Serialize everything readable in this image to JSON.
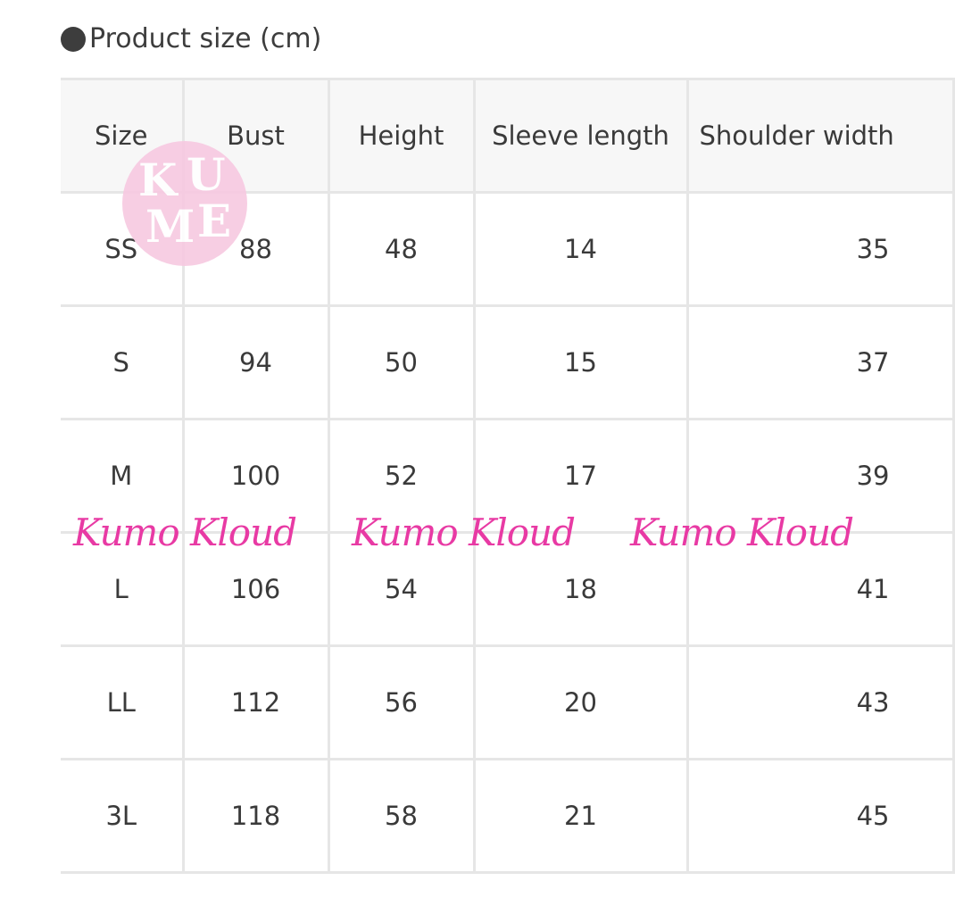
{
  "title": "Product size (cm)",
  "table": {
    "headers": [
      "Size",
      "Bust",
      "Height",
      "Sleeve length",
      "Shoulder width"
    ],
    "rows": [
      [
        "SS",
        "88",
        "48",
        "14",
        "35"
      ],
      [
        "S",
        "94",
        "50",
        "15",
        "37"
      ],
      [
        "M",
        "100",
        "52",
        "17",
        "39"
      ],
      [
        "L",
        "106",
        "54",
        "18",
        "41"
      ],
      [
        "LL",
        "112",
        "56",
        "20",
        "43"
      ],
      [
        "3L",
        "118",
        "58",
        "21",
        "45"
      ]
    ]
  },
  "watermark": {
    "text": "Kumo Kloud",
    "color": "#e83aa4"
  },
  "logo": {
    "text": "KUME",
    "color": "#f7c9e1"
  }
}
